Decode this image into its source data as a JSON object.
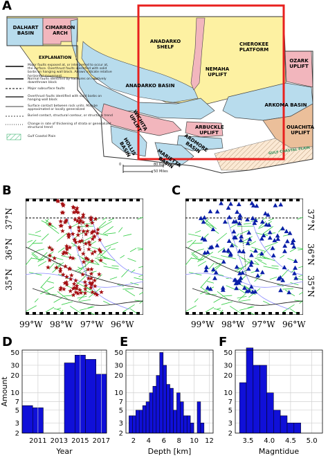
{
  "panelA": {
    "letter": "A",
    "regions": [
      {
        "id": "dalhart",
        "label": "DALHART BASIN"
      },
      {
        "id": "cimarron",
        "label": "CIMARRON ARCH"
      },
      {
        "id": "anadarko_shelf",
        "label": "ANADARKO SHELF"
      },
      {
        "id": "cherokee",
        "label": "CHEROKEE PLATFORM"
      },
      {
        "id": "nemaha",
        "label": "NEMAHA UPLIFT"
      },
      {
        "id": "ozark",
        "label": "OZARK UPLIFT"
      },
      {
        "id": "anadarko_basin",
        "label": "ANADARKO BASIN"
      },
      {
        "id": "arkoma",
        "label": "ARKOMA BASIN"
      },
      {
        "id": "wichita",
        "label": "WICHITA UPLIFT"
      },
      {
        "id": "ardmore",
        "label": "ARDMORE BASIN"
      },
      {
        "id": "arbuckle",
        "label": "ARBUCKLE UPLIFT"
      },
      {
        "id": "ouachita",
        "label": "OUACHITA UPLIFT"
      },
      {
        "id": "hollis",
        "label": "HOLLIS BASIN"
      },
      {
        "id": "marietta",
        "label": "MARIETTA BASIN"
      },
      {
        "id": "gulf",
        "label": "GULF COASTAL PLAIN"
      }
    ],
    "legend": {
      "title": "EXPLANATION",
      "items": [
        "Major faults exposed at, or interpreted to occur at, the surface. Overthrust faults identified with solid barbs on hanging wall block. Arrows indicate relative horizontal movement",
        "Normal faults identified by hachures on relatively downthrown block",
        "Major subsurface faults",
        "Overthrust faults identified with solid barbs on hanging wall block",
        "Surface contact between rock units. May be approximated or locally generalized",
        "Buried contact, structural contour, or structural trend",
        "Change in rate of thickening of strata or generalized structural trend",
        "Gulf Coastal Plain"
      ]
    },
    "scale": {
      "km_label": "80 Kilometers",
      "mi_label": "50 Miles",
      "zero": "0"
    }
  },
  "panelB": {
    "letter": "B"
  },
  "panelC": {
    "letter": "C"
  },
  "map_axes": {
    "lon_labels": [
      "99°W",
      "98°W",
      "97°W",
      "96°W"
    ],
    "lat_labels": [
      "37°N",
      "36°N",
      "35°N"
    ]
  },
  "colors": {
    "red_box": "#e8201e",
    "yellow": "#fdf1a2",
    "blue": "#b8dced",
    "pink": "#f2b6bd",
    "orange": "#ebbf9a",
    "green_fault": "#2ecc40",
    "star": "#a50f12",
    "triangle": "#0a1fa8",
    "bar": "#1010d8",
    "river": "#8a8aff"
  },
  "chart_data": [
    {
      "panel": "D",
      "type": "bar",
      "xlabel": "Year",
      "ylabel": "Amount",
      "x": [
        2010,
        2011,
        2012,
        2013,
        2014,
        2015,
        2016,
        2017
      ],
      "values": [
        6,
        5.5,
        0,
        2,
        33,
        45,
        38,
        21
      ],
      "xticks": [
        "2011",
        "2013",
        "2015",
        "2017"
      ],
      "yticks": [
        "2",
        "3",
        "5",
        "7",
        "10",
        "20",
        "30",
        "50"
      ],
      "y_scale": "log",
      "ylim": [
        2,
        55
      ]
    },
    {
      "panel": "E",
      "type": "bar",
      "xlabel": "Depth [km]",
      "ylabel": "",
      "bin_edges": [
        1.4,
        1.85,
        2.3,
        2.75,
        3.2,
        3.65,
        4.1,
        4.55,
        5.0,
        5.45,
        5.9,
        6.35,
        6.8,
        7.25,
        7.7,
        8.15,
        8.6,
        9.05,
        9.5,
        9.95,
        10.4,
        10.85,
        11.3
      ],
      "values": [
        4,
        4,
        5,
        5,
        6,
        7,
        10,
        13,
        20,
        50,
        30,
        14,
        12,
        5,
        10,
        7,
        4,
        4,
        3,
        2,
        7,
        3
      ],
      "xticks": [
        "2",
        "4",
        "6",
        "8",
        "10",
        "12"
      ],
      "yticks": [
        "2",
        "3",
        "5",
        "7",
        "10",
        "20",
        "30",
        "50"
      ],
      "y_scale": "log",
      "ylim": [
        2,
        55
      ]
    },
    {
      "panel": "F",
      "type": "bar",
      "xlabel": "Magntidue",
      "ylabel": "",
      "bin_edges": [
        3.3,
        3.46,
        3.62,
        3.78,
        3.94,
        4.1,
        4.26,
        4.42,
        4.58,
        4.74,
        4.9,
        5.06
      ],
      "values": [
        15,
        60,
        30,
        30,
        10,
        5,
        4,
        3,
        3,
        2,
        2
      ],
      "xticks": [
        "3.5",
        "4.0",
        "4.5",
        "5.0"
      ],
      "yticks": [
        "2",
        "3",
        "5",
        "7",
        "10",
        "20",
        "30",
        "50"
      ],
      "y_scale": "log",
      "ylim": [
        2,
        55
      ]
    }
  ]
}
